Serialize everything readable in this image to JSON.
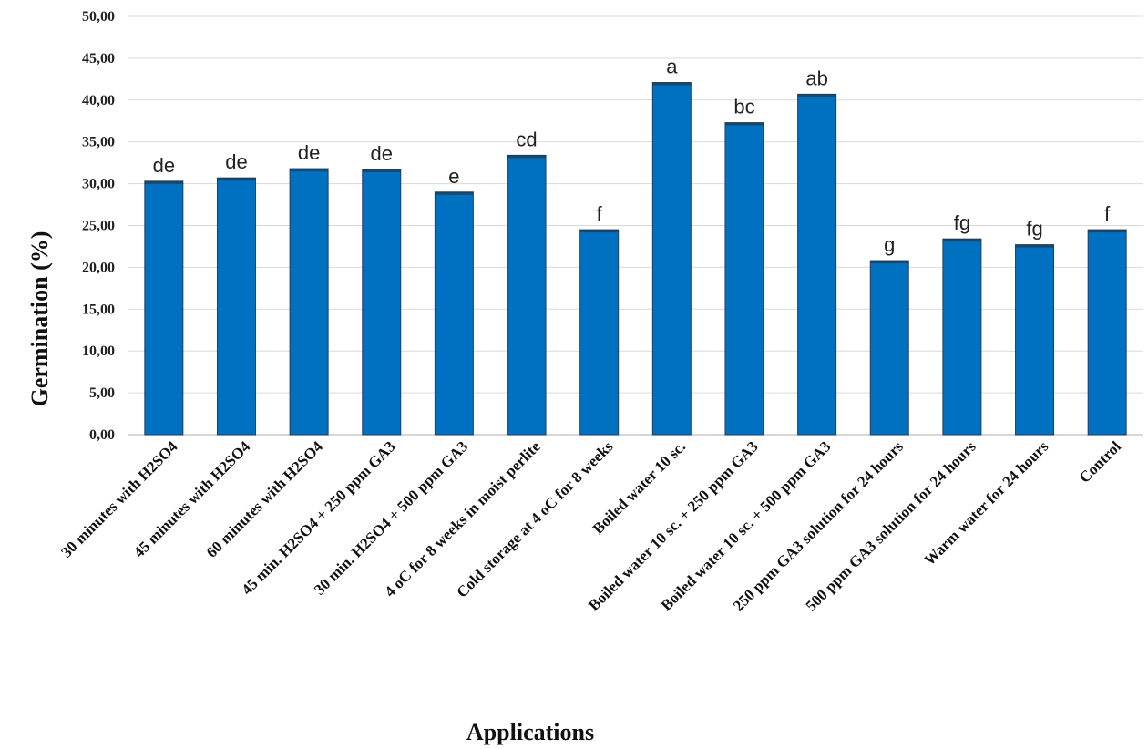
{
  "chart_data": {
    "type": "bar",
    "xlabel": "Applications",
    "ylabel": "Germination (%)",
    "ylim": [
      0,
      50
    ],
    "y_ticks": [
      "0,00",
      "5,00",
      "10,00",
      "15,00",
      "20,00",
      "25,00",
      "30,00",
      "35,00",
      "40,00",
      "45,00",
      "50,00"
    ],
    "grid": true,
    "bar_color": "#0070C0",
    "categories": [
      "30 minutes with H2SO4",
      "45 minutes with H2SO4",
      "60 minutes with H2SO4",
      "45 min. H2SO4  + 250 ppm GA3",
      "30 min. H2SO4 + 500 ppm GA3",
      "4 oC for 8 weeks in moist perlite",
      "Cold storage at 4 oC for 8 weeks",
      "Boiled water 10 sc.",
      "Boiled water 10 sc. + 250 ppm GA3",
      "Boiled water 10 sc. + 500 ppm GA3",
      "250 ppm GA3 solution for 24 hours",
      "500 ppm GA3 solution for 24 hours",
      "Warm water for 24 hours",
      "Control"
    ],
    "values": [
      30.3,
      30.7,
      31.8,
      31.7,
      29.0,
      33.4,
      24.5,
      42.1,
      37.3,
      40.7,
      20.8,
      23.4,
      22.7,
      24.5
    ],
    "labels": [
      "de",
      "de",
      "de",
      "de",
      "e",
      "cd",
      "f",
      "a",
      "bc",
      "ab",
      "g",
      "fg",
      "fg",
      "f"
    ]
  }
}
